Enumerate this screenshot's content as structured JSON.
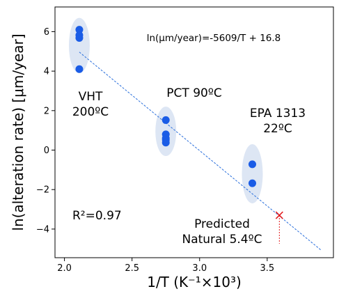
{
  "chart_data": {
    "type": "scatter",
    "xlabel": "1/T (K⁻¹×10³)",
    "ylabel": "ln(alteration rate) [μm/year]",
    "xlim": [
      1.93,
      3.99
    ],
    "ylim": [
      -5.45,
      7.25
    ],
    "xticks": [
      "2.0",
      "2.5",
      "3.0",
      "3.5"
    ],
    "yticks": [
      "−4",
      "−2",
      "0",
      "2",
      "4",
      "6"
    ],
    "grid": false,
    "equation": "ln(μm/year)=-5609/T + 16.8",
    "fit": {
      "slope": -5.609,
      "intercept": 16.8,
      "x_range": [
        2.11,
        3.9
      ]
    },
    "r_squared_label": "R²=0.97",
    "groups": [
      {
        "label_lines": [
          "VHT",
          "200ºC"
        ],
        "x": 2.11,
        "points": [
          6.1,
          5.82,
          5.68,
          4.1
        ],
        "ellipse_y_range": [
          3.9,
          6.7
        ]
      },
      {
        "label_lines": [
          "PCT 90ºC"
        ],
        "x": 2.75,
        "points": [
          1.52,
          0.8,
          0.6,
          0.52,
          0.38
        ],
        "ellipse_y_range": [
          -0.3,
          2.2
        ]
      },
      {
        "label_lines": [
          "EPA 1313",
          "22ºC"
        ],
        "x": 3.39,
        "points": [
          -0.72,
          -1.68
        ],
        "ellipse_y_range": [
          -2.7,
          0.3
        ]
      }
    ],
    "prediction": {
      "label_lines": [
        "Predicted",
        "Natural 5.4ºC"
      ],
      "x": 3.59,
      "y": -3.3
    },
    "colors": {
      "points": "#1a5ce6",
      "ellipse": "#dde6f4",
      "fit_line": "#2a6fdc",
      "prediction": "#e31a1c"
    }
  }
}
